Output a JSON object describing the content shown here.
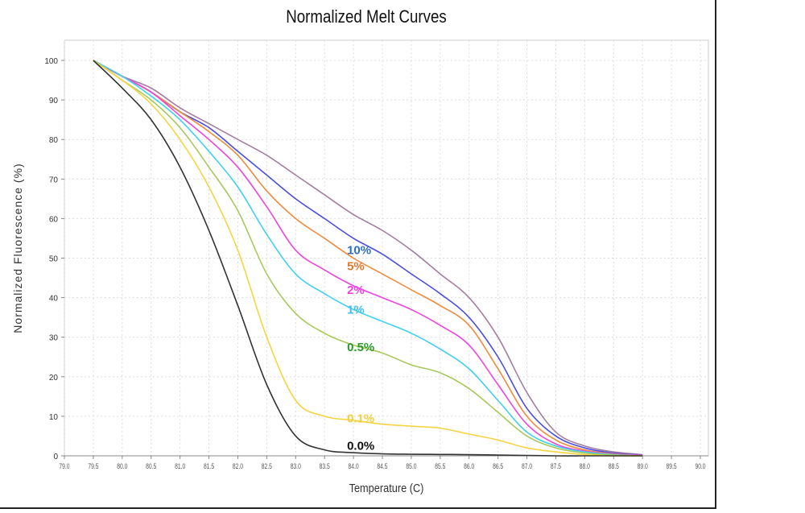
{
  "chart_data": {
    "type": "line",
    "title": "Normalized Melt Curves",
    "xlabel": "Temperature (C)",
    "ylabel": "Normalized Fluorescence (%)",
    "xlim": [
      79.0,
      90.0
    ],
    "ylim": [
      0,
      100
    ],
    "grid": true,
    "xticks": [
      "79.0",
      "79.5",
      "80.0",
      "80.5",
      "81.0",
      "81.5",
      "82.0",
      "82.5",
      "83.0",
      "83.5",
      "84.0",
      "84.5",
      "85.0",
      "85.5",
      "86.0",
      "86.5",
      "87.0",
      "87.5",
      "88.0",
      "88.5",
      "89.0",
      "89.5",
      "90.0"
    ],
    "yticks": [
      "0",
      "10",
      "20",
      "30",
      "40",
      "50",
      "60",
      "70",
      "80",
      "90",
      "100"
    ],
    "x": [
      79.5,
      80,
      80.5,
      81,
      81.5,
      82,
      82.5,
      83,
      83.5,
      84,
      84.5,
      85,
      85.5,
      86,
      86.5,
      87,
      87.5,
      88,
      88.5,
      89
    ],
    "series": [
      {
        "name": "",
        "color": "#a57d9e",
        "values": [
          100,
          96,
          93,
          88,
          84,
          80,
          76,
          71,
          66,
          61,
          57,
          52,
          46,
          40,
          30,
          16,
          6,
          2.5,
          1,
          0.3
        ]
      },
      {
        "name": "10%",
        "color": "#4a4ee0",
        "values": [
          100,
          96,
          92,
          87,
          83,
          77,
          71,
          65,
          60,
          55,
          51,
          46,
          41,
          35,
          25,
          12,
          5,
          2,
          0.7,
          0.2
        ]
      },
      {
        "name": "5%",
        "color": "#f08a3c",
        "values": [
          100,
          96,
          92,
          87,
          82,
          76,
          67,
          60,
          55,
          50,
          46,
          42,
          38,
          33,
          22,
          10,
          4,
          1.5,
          0.5,
          0.1
        ]
      },
      {
        "name": "2%",
        "color": "#ee44dd",
        "values": [
          100,
          96,
          92,
          86,
          80,
          73,
          63,
          52,
          47,
          43,
          40,
          37,
          33,
          28,
          18,
          8,
          3,
          1.2,
          0.4,
          0.1
        ]
      },
      {
        "name": "1%",
        "color": "#3fd0f0",
        "values": [
          100,
          96,
          91,
          85,
          77,
          68,
          56,
          46,
          41,
          37,
          34,
          31,
          27,
          22,
          14,
          6,
          2.5,
          1,
          0.3,
          0
        ]
      },
      {
        "name": "0.5%",
        "color": "#a8c85a",
        "values": [
          100,
          95,
          90,
          83,
          73,
          62,
          46,
          36,
          31,
          28,
          26,
          23,
          21,
          17,
          11,
          5,
          2,
          0.7,
          0.2,
          0
        ]
      },
      {
        "name": "0.1%",
        "color": "#f5d442",
        "values": [
          100,
          95,
          89,
          80,
          68,
          52,
          30,
          14,
          10,
          9,
          8,
          7.5,
          7,
          5.5,
          4,
          2,
          1,
          0.3,
          0,
          0
        ]
      },
      {
        "name": "0.0%",
        "color": "#333333",
        "values": [
          100,
          93,
          85,
          73,
          57,
          38,
          18,
          5,
          1.5,
          0.8,
          0.5,
          0.4,
          0.35,
          0.3,
          0.2,
          0.1,
          0,
          0,
          0,
          0
        ]
      }
    ],
    "annotations": [
      {
        "text": "10%",
        "x": 84,
        "y": 52,
        "color": "#2f6fc0"
      },
      {
        "text": "5%",
        "x": 84,
        "y": 48,
        "color": "#e0782e"
      },
      {
        "text": "2%",
        "x": 84,
        "y": 42,
        "color": "#ee44dd"
      },
      {
        "text": "1%",
        "x": 84,
        "y": 37,
        "color": "#3fc0f0"
      },
      {
        "text": "0.5%",
        "x": 84,
        "y": 27.5,
        "color": "#2a9a2a"
      },
      {
        "text": "0.1%",
        "x": 84,
        "y": 9.5,
        "color": "#f0d040"
      },
      {
        "text": "0.0%",
        "x": 84,
        "y": 2.5,
        "color": "#111111"
      }
    ]
  }
}
